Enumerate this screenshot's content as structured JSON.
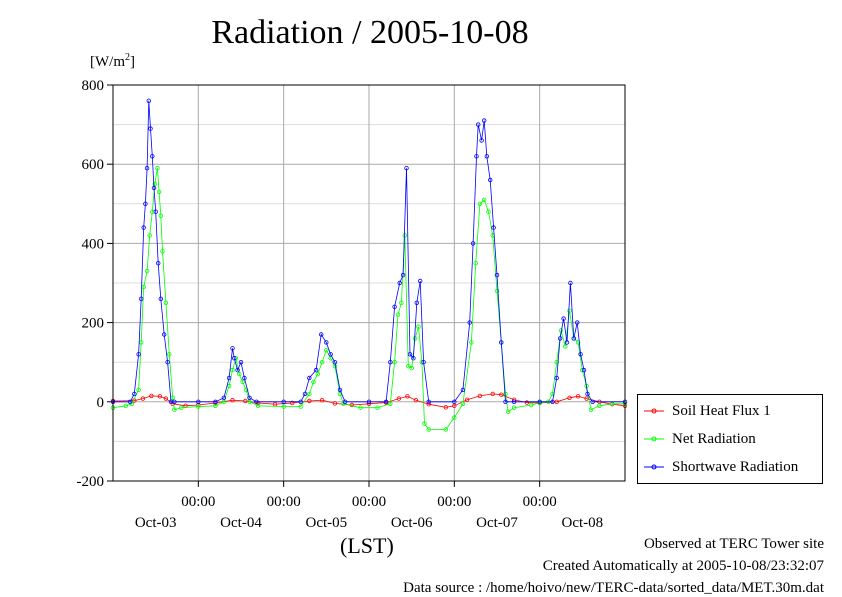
{
  "title": "Radiation / 2005-10-08",
  "footer": {
    "line1": "Observed at TERC Tower site",
    "line2": "Created Automatically at 2005-10-08/23:32:07",
    "line3": "Data source : /home/hoivo/new/TERC-data/sorted_data/MET.30m.dat"
  },
  "chart_data": {
    "type": "line",
    "title": "Radiation / 2005-10-08",
    "ylabel_base": "[W/m",
    "ylabel_sup": "2",
    "ylabel_end": "]",
    "xlabel": "(LST)",
    "ylim": [
      -200,
      800
    ],
    "yticks": [
      -200,
      0,
      200,
      400,
      600,
      800
    ],
    "xlim": [
      0,
      6
    ],
    "grid": true,
    "legend_position": "right",
    "x_ticks": [
      {
        "x": 1,
        "time": "00:00",
        "date": "Oct-04"
      },
      {
        "x": 2,
        "time": "00:00",
        "date": "Oct-05"
      },
      {
        "x": 3,
        "time": "00:00",
        "date": "Oct-06"
      },
      {
        "x": 4,
        "time": "00:00",
        "date": "Oct-07"
      },
      {
        "x": 5,
        "time": "00:00",
        "date": "Oct-08"
      }
    ],
    "date_labels": [
      {
        "x": 0.5,
        "label": "Oct-03"
      },
      {
        "x": 1.5,
        "label": "Oct-04"
      },
      {
        "x": 2.5,
        "label": "Oct-05"
      },
      {
        "x": 3.5,
        "label": "Oct-06"
      },
      {
        "x": 4.5,
        "label": "Oct-07"
      },
      {
        "x": 5.5,
        "label": "Oct-08"
      }
    ],
    "series": [
      {
        "name": "Soil Heat Flux 1",
        "color": "#ff0000",
        "points": [
          [
            0,
            2
          ],
          [
            0.25,
            3
          ],
          [
            0.35,
            8
          ],
          [
            0.45,
            15
          ],
          [
            0.55,
            14
          ],
          [
            0.62,
            8
          ],
          [
            0.7,
            -5
          ],
          [
            0.85,
            -10
          ],
          [
            1.0,
            -8
          ],
          [
            1.2,
            -3
          ],
          [
            1.4,
            4
          ],
          [
            1.55,
            2
          ],
          [
            1.7,
            -3
          ],
          [
            1.9,
            -6
          ],
          [
            2.1,
            -3
          ],
          [
            2.3,
            2
          ],
          [
            2.45,
            4
          ],
          [
            2.6,
            -4
          ],
          [
            2.8,
            -8
          ],
          [
            3.0,
            -5
          ],
          [
            3.2,
            -2
          ],
          [
            3.35,
            8
          ],
          [
            3.45,
            14
          ],
          [
            3.55,
            4
          ],
          [
            3.7,
            -6
          ],
          [
            3.9,
            -14
          ],
          [
            4.0,
            -10
          ],
          [
            4.15,
            5
          ],
          [
            4.3,
            15
          ],
          [
            4.45,
            20
          ],
          [
            4.55,
            18
          ],
          [
            4.7,
            5
          ],
          [
            4.85,
            -2
          ],
          [
            5.0,
            -3
          ],
          [
            5.2,
            0
          ],
          [
            5.35,
            10
          ],
          [
            5.45,
            14
          ],
          [
            5.55,
            8
          ],
          [
            5.7,
            0
          ],
          [
            5.85,
            -6
          ],
          [
            6.0,
            -10
          ]
        ]
      },
      {
        "name": "Net Radiation",
        "color": "#00ff00",
        "points": [
          [
            0,
            -15
          ],
          [
            0.15,
            -10
          ],
          [
            0.22,
            -5
          ],
          [
            0.3,
            30
          ],
          [
            0.33,
            150
          ],
          [
            0.36,
            290
          ],
          [
            0.4,
            330
          ],
          [
            0.43,
            420
          ],
          [
            0.46,
            480
          ],
          [
            0.49,
            550
          ],
          [
            0.52,
            590
          ],
          [
            0.54,
            530
          ],
          [
            0.56,
            470
          ],
          [
            0.58,
            380
          ],
          [
            0.62,
            250
          ],
          [
            0.66,
            120
          ],
          [
            0.7,
            10
          ],
          [
            0.72,
            -20
          ],
          [
            0.8,
            -15
          ],
          [
            1.0,
            -12
          ],
          [
            1.2,
            -10
          ],
          [
            1.3,
            0
          ],
          [
            1.36,
            40
          ],
          [
            1.4,
            80
          ],
          [
            1.44,
            110
          ],
          [
            1.48,
            70
          ],
          [
            1.52,
            50
          ],
          [
            1.56,
            30
          ],
          [
            1.6,
            0
          ],
          [
            1.7,
            -10
          ],
          [
            2.0,
            -12
          ],
          [
            2.2,
            -12
          ],
          [
            2.3,
            20
          ],
          [
            2.35,
            50
          ],
          [
            2.4,
            70
          ],
          [
            2.45,
            100
          ],
          [
            2.5,
            130
          ],
          [
            2.55,
            110
          ],
          [
            2.6,
            90
          ],
          [
            2.66,
            20
          ],
          [
            2.7,
            -5
          ],
          [
            2.9,
            -15
          ],
          [
            3.1,
            -15
          ],
          [
            3.25,
            -5
          ],
          [
            3.3,
            100
          ],
          [
            3.34,
            220
          ],
          [
            3.38,
            250
          ],
          [
            3.42,
            420
          ],
          [
            3.46,
            90
          ],
          [
            3.5,
            85
          ],
          [
            3.54,
            160
          ],
          [
            3.58,
            190
          ],
          [
            3.62,
            100
          ],
          [
            3.65,
            -55
          ],
          [
            3.7,
            -70
          ],
          [
            3.9,
            -70
          ],
          [
            4.0,
            -40
          ],
          [
            4.1,
            -5
          ],
          [
            4.2,
            150
          ],
          [
            4.25,
            350
          ],
          [
            4.3,
            500
          ],
          [
            4.35,
            510
          ],
          [
            4.4,
            480
          ],
          [
            4.45,
            420
          ],
          [
            4.5,
            280
          ],
          [
            4.55,
            150
          ],
          [
            4.6,
            20
          ],
          [
            4.63,
            -25
          ],
          [
            4.7,
            -15
          ],
          [
            4.9,
            -8
          ],
          [
            5.0,
            -3
          ],
          [
            5.1,
            0
          ],
          [
            5.15,
            20
          ],
          [
            5.2,
            100
          ],
          [
            5.25,
            180
          ],
          [
            5.3,
            140
          ],
          [
            5.35,
            230
          ],
          [
            5.4,
            160
          ],
          [
            5.45,
            150
          ],
          [
            5.5,
            80
          ],
          [
            5.55,
            40
          ],
          [
            5.6,
            -20
          ],
          [
            5.7,
            -10
          ],
          [
            5.85,
            -5
          ],
          [
            6.0,
            -5
          ]
        ]
      },
      {
        "name": "Shortwave Radiation",
        "color": "#0000ff",
        "points": [
          [
            0,
            0
          ],
          [
            0.2,
            0
          ],
          [
            0.25,
            20
          ],
          [
            0.3,
            120
          ],
          [
            0.33,
            260
          ],
          [
            0.36,
            440
          ],
          [
            0.38,
            500
          ],
          [
            0.4,
            590
          ],
          [
            0.42,
            760
          ],
          [
            0.44,
            690
          ],
          [
            0.46,
            620
          ],
          [
            0.48,
            540
          ],
          [
            0.5,
            480
          ],
          [
            0.53,
            350
          ],
          [
            0.56,
            260
          ],
          [
            0.6,
            170
          ],
          [
            0.64,
            100
          ],
          [
            0.68,
            0
          ],
          [
            0.72,
            0
          ],
          [
            1.0,
            0
          ],
          [
            1.2,
            0
          ],
          [
            1.3,
            10
          ],
          [
            1.36,
            60
          ],
          [
            1.4,
            135
          ],
          [
            1.42,
            110
          ],
          [
            1.46,
            80
          ],
          [
            1.5,
            100
          ],
          [
            1.54,
            60
          ],
          [
            1.6,
            10
          ],
          [
            1.68,
            0
          ],
          [
            2.0,
            0
          ],
          [
            2.2,
            0
          ],
          [
            2.25,
            20
          ],
          [
            2.3,
            60
          ],
          [
            2.38,
            80
          ],
          [
            2.44,
            170
          ],
          [
            2.5,
            150
          ],
          [
            2.55,
            120
          ],
          [
            2.6,
            100
          ],
          [
            2.66,
            30
          ],
          [
            2.72,
            0
          ],
          [
            3.0,
            0
          ],
          [
            3.2,
            0
          ],
          [
            3.25,
            100
          ],
          [
            3.3,
            240
          ],
          [
            3.36,
            300
          ],
          [
            3.4,
            320
          ],
          [
            3.44,
            590
          ],
          [
            3.48,
            120
          ],
          [
            3.52,
            110
          ],
          [
            3.56,
            250
          ],
          [
            3.6,
            305
          ],
          [
            3.64,
            100
          ],
          [
            3.7,
            0
          ],
          [
            4.0,
            0
          ],
          [
            4.1,
            30
          ],
          [
            4.18,
            200
          ],
          [
            4.22,
            400
          ],
          [
            4.26,
            620
          ],
          [
            4.28,
            700
          ],
          [
            4.32,
            660
          ],
          [
            4.35,
            710
          ],
          [
            4.38,
            620
          ],
          [
            4.42,
            560
          ],
          [
            4.46,
            440
          ],
          [
            4.5,
            320
          ],
          [
            4.55,
            150
          ],
          [
            4.6,
            0
          ],
          [
            4.7,
            0
          ],
          [
            5.0,
            0
          ],
          [
            5.15,
            0
          ],
          [
            5.2,
            60
          ],
          [
            5.24,
            160
          ],
          [
            5.28,
            210
          ],
          [
            5.32,
            150
          ],
          [
            5.36,
            300
          ],
          [
            5.4,
            160
          ],
          [
            5.44,
            200
          ],
          [
            5.48,
            120
          ],
          [
            5.52,
            80
          ],
          [
            5.56,
            20
          ],
          [
            5.62,
            0
          ],
          [
            6.0,
            0
          ]
        ]
      }
    ]
  }
}
